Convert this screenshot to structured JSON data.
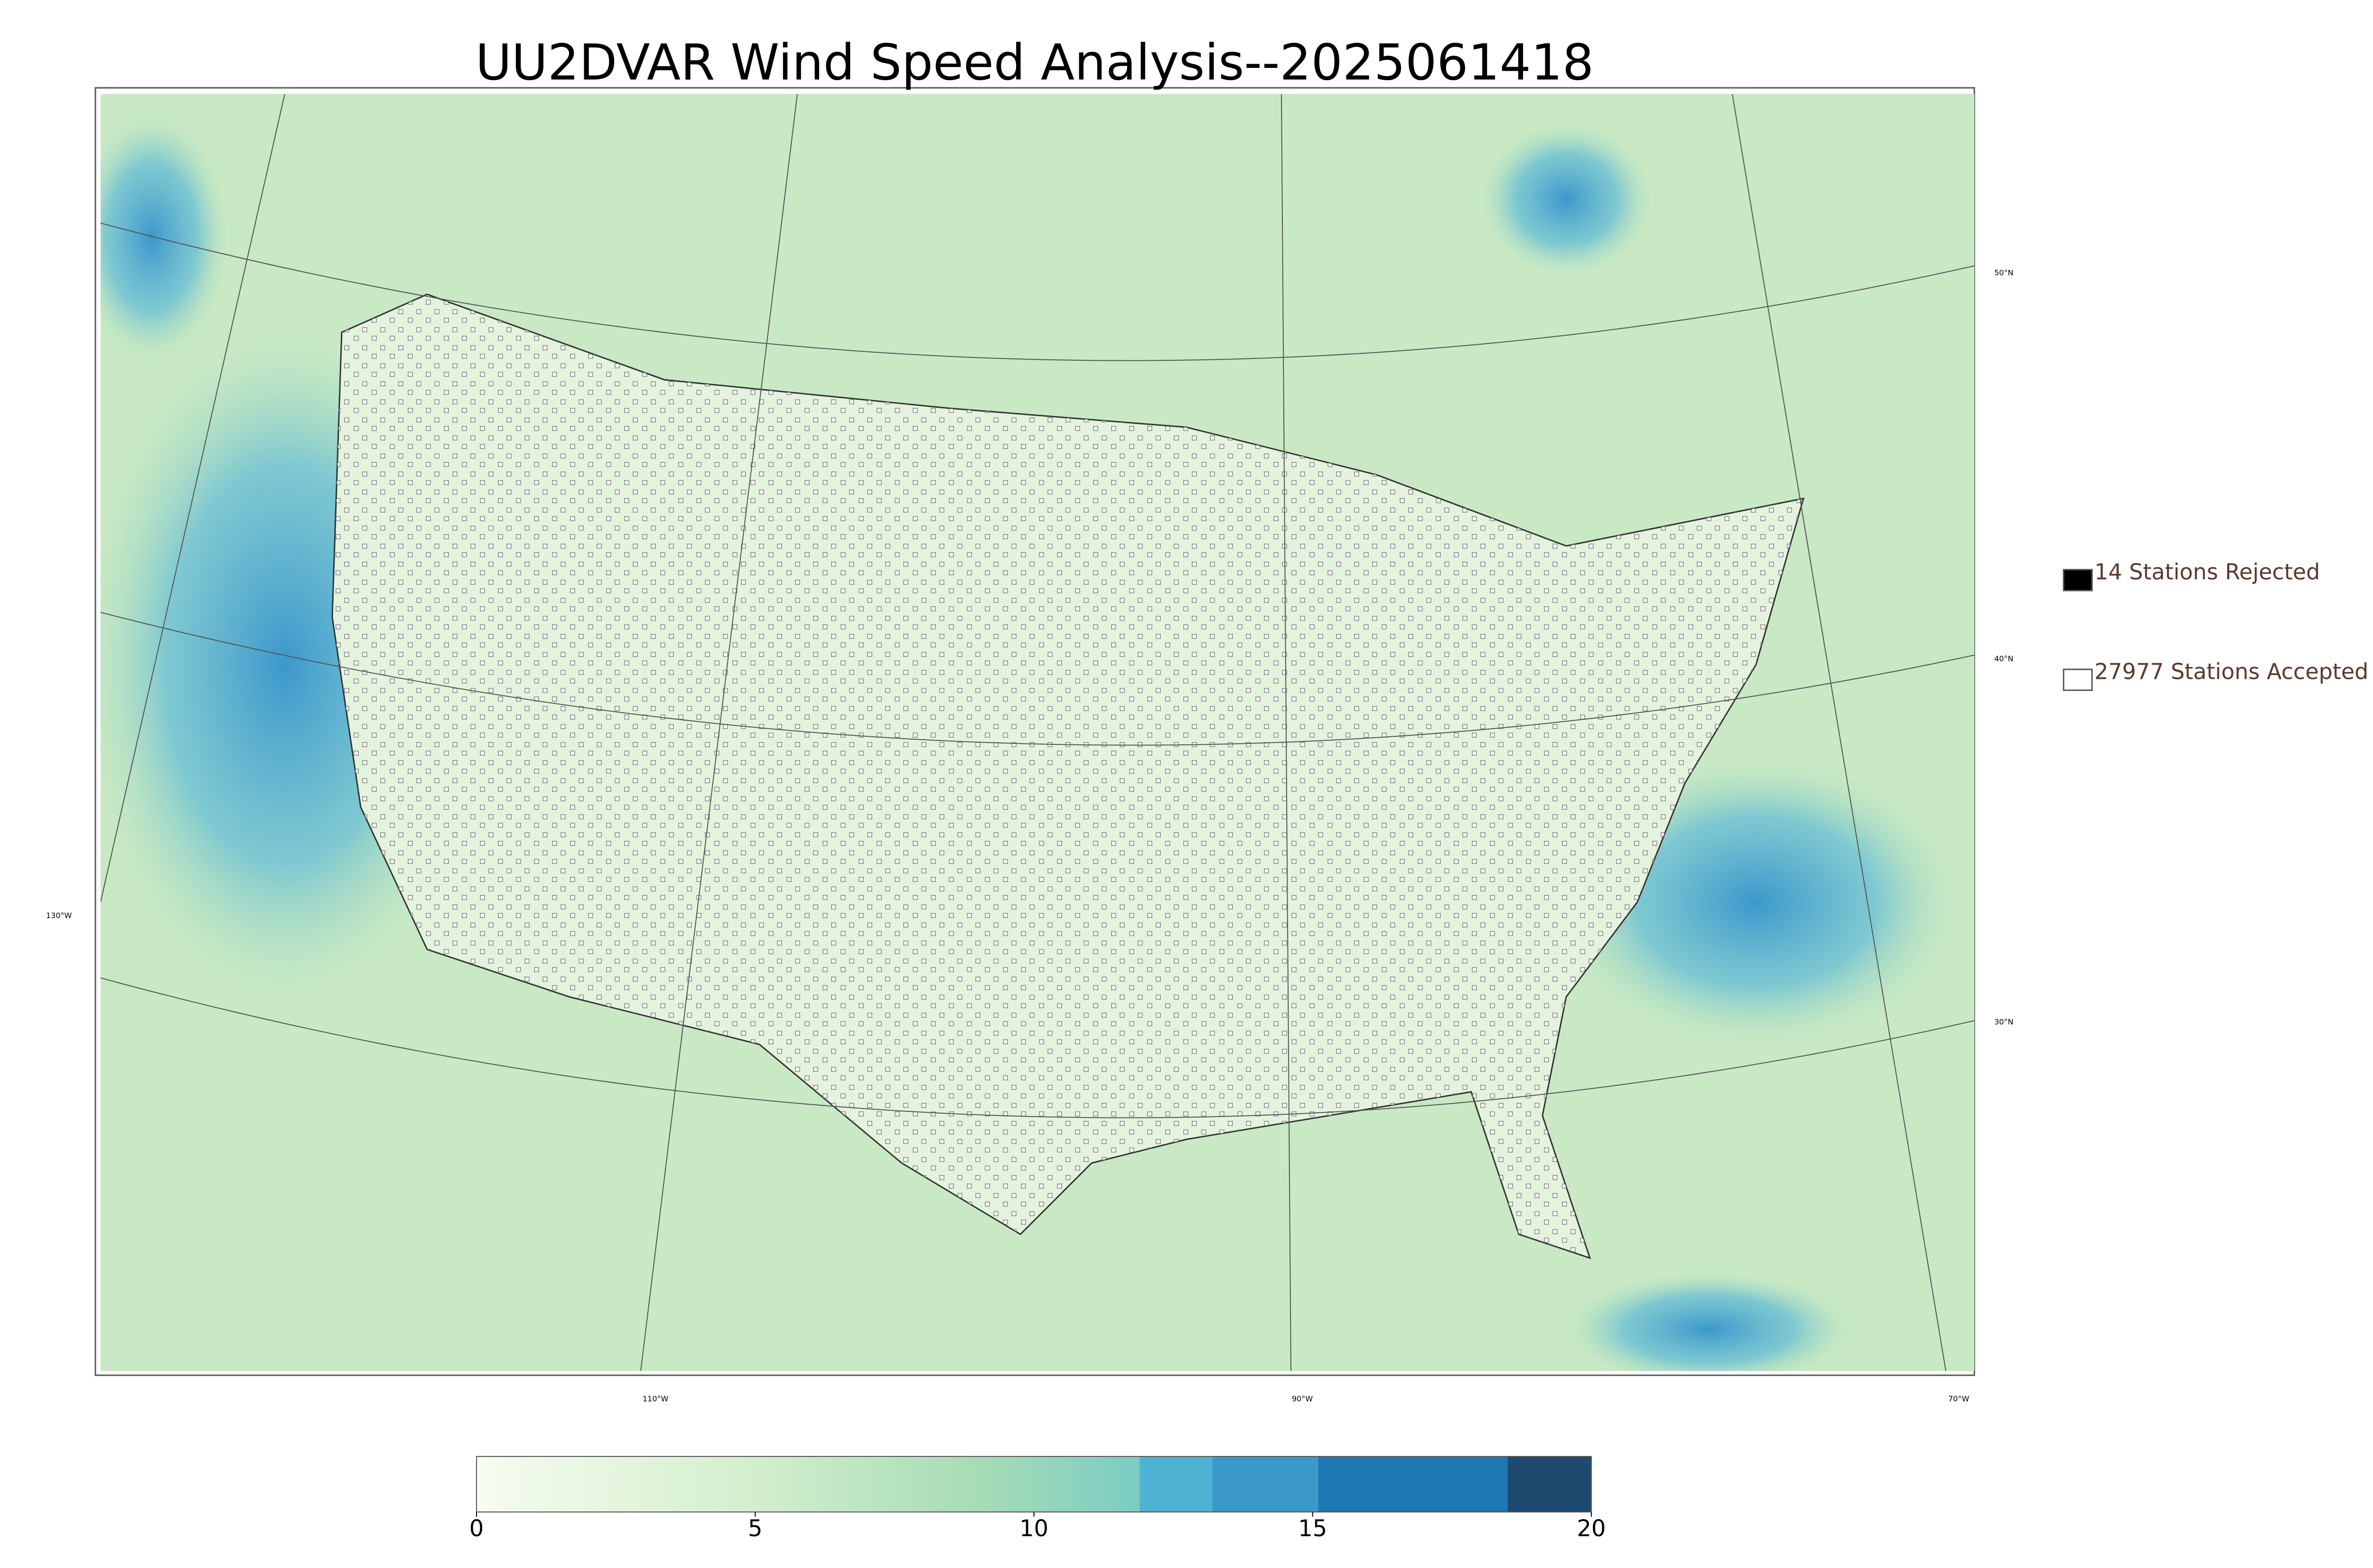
{
  "title": "UU2DVAR Wind Speed Analysis--2025061418",
  "legend": [
    {
      "label": "14 Stations Rejected",
      "color": "#000000"
    },
    {
      "label": "27977 Stations Accepted",
      "color": "#ffffff"
    }
  ],
  "graticule": {
    "lat_labels": [
      "50°N",
      "40°N",
      "30°N"
    ],
    "lon_labels": [
      "130°W",
      "110°W",
      "90°W",
      "70°W"
    ]
  },
  "colorbar": {
    "lim": [
      0,
      20
    ],
    "ticks": [
      0,
      5,
      10,
      15,
      20
    ]
  }
}
